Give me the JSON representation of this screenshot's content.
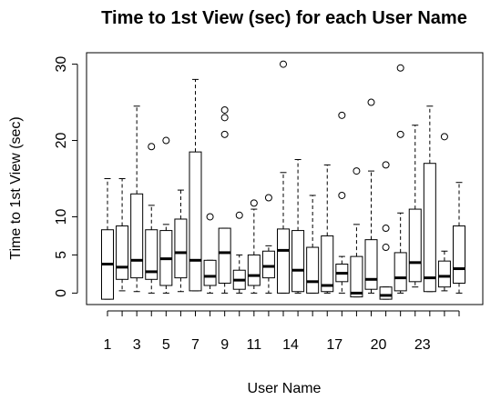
{
  "chart_data": {
    "type": "boxplot",
    "title": "Time to 1st View (sec) for each User Name",
    "xlabel": "User Name",
    "ylabel": "Time to 1st View (sec)",
    "ylim": [
      -1.5,
      31.5
    ],
    "y_ticks": [
      0,
      5,
      10,
      20,
      30
    ],
    "x_tick_labels": [
      "1",
      "3",
      "5",
      "7",
      "9",
      "11",
      "14",
      "17",
      "20",
      "23"
    ],
    "x_tick_positions": [
      1,
      3,
      5,
      7,
      9,
      11,
      13.5,
      16.5,
      19.5,
      22.5
    ],
    "n_groups": 25,
    "grid": false,
    "boxes": [
      {
        "group": 1,
        "whisker_low": -0.8,
        "q1": -0.8,
        "median": 3.8,
        "q3": 8.3,
        "whisker_high": 15.0,
        "outliers": []
      },
      {
        "group": 2,
        "whisker_low": 0.3,
        "q1": 1.8,
        "median": 3.4,
        "q3": 8.8,
        "whisker_high": 15.0,
        "outliers": []
      },
      {
        "group": 3,
        "whisker_low": 0.2,
        "q1": 2.0,
        "median": 4.3,
        "q3": 13.0,
        "whisker_high": 24.5,
        "outliers": []
      },
      {
        "group": 4,
        "whisker_low": 0.0,
        "q1": 1.8,
        "median": 2.8,
        "q3": 8.3,
        "whisker_high": 11.5,
        "outliers": [
          19.2
        ]
      },
      {
        "group": 5,
        "whisker_low": 0.0,
        "q1": 1.0,
        "median": 4.5,
        "q3": 8.2,
        "whisker_high": 9.0,
        "outliers": [
          20.0
        ]
      },
      {
        "group": 6,
        "whisker_low": 0.2,
        "q1": 2.0,
        "median": 5.3,
        "q3": 9.7,
        "whisker_high": 13.5,
        "outliers": []
      },
      {
        "group": 7,
        "whisker_low": 0.3,
        "q1": 0.3,
        "median": 4.3,
        "q3": 18.5,
        "whisker_high": 28.0,
        "outliers": []
      },
      {
        "group": 8,
        "whisker_low": 0.0,
        "q1": 1.0,
        "median": 2.2,
        "q3": 4.3,
        "whisker_high": 4.3,
        "outliers": [
          10.0
        ]
      },
      {
        "group": 9,
        "whisker_low": 0.0,
        "q1": 1.3,
        "median": 5.3,
        "q3": 8.5,
        "whisker_high": 8.5,
        "outliers": [
          20.8,
          23.0,
          24.0
        ]
      },
      {
        "group": 10,
        "whisker_low": 0.0,
        "q1": 0.5,
        "median": 1.7,
        "q3": 3.0,
        "whisker_high": 5.0,
        "outliers": [
          10.2
        ]
      },
      {
        "group": 11,
        "whisker_low": 0.0,
        "q1": 1.0,
        "median": 2.3,
        "q3": 5.0,
        "whisker_high": 11.0,
        "outliers": [
          11.8
        ]
      },
      {
        "group": 12,
        "whisker_low": 0.0,
        "q1": 2.0,
        "median": 3.5,
        "q3": 5.5,
        "whisker_high": 6.2,
        "outliers": [
          12.5
        ]
      },
      {
        "group": 13,
        "whisker_low": 0.0,
        "q1": 0.0,
        "median": 5.6,
        "q3": 8.4,
        "whisker_high": 15.8,
        "outliers": [
          30.0
        ]
      },
      {
        "group": 14,
        "whisker_low": 0.0,
        "q1": 0.2,
        "median": 3.0,
        "q3": 8.2,
        "whisker_high": 17.5,
        "outliers": []
      },
      {
        "group": 15,
        "whisker_low": 0.0,
        "q1": 0.0,
        "median": 1.5,
        "q3": 6.0,
        "whisker_high": 12.8,
        "outliers": []
      },
      {
        "group": 16,
        "whisker_low": 0.0,
        "q1": 0.2,
        "median": 1.0,
        "q3": 7.5,
        "whisker_high": 16.8,
        "outliers": []
      },
      {
        "group": 17,
        "whisker_low": 0.0,
        "q1": 1.5,
        "median": 2.6,
        "q3": 3.8,
        "whisker_high": 4.8,
        "outliers": [
          12.8,
          23.3
        ]
      },
      {
        "group": 18,
        "whisker_low": -0.5,
        "q1": -0.5,
        "median": 0.0,
        "q3": 4.8,
        "whisker_high": 9.0,
        "outliers": [
          16.0
        ]
      },
      {
        "group": 19,
        "whisker_low": 0.0,
        "q1": 0.5,
        "median": 1.8,
        "q3": 7.0,
        "whisker_high": 16.0,
        "outliers": [
          25.0
        ]
      },
      {
        "group": 20,
        "whisker_low": -0.8,
        "q1": -0.8,
        "median": -0.3,
        "q3": 0.8,
        "whisker_high": 0.8,
        "outliers": [
          6.0,
          8.5,
          16.8
        ]
      },
      {
        "group": 21,
        "whisker_low": 0.0,
        "q1": 0.3,
        "median": 2.0,
        "q3": 5.3,
        "whisker_high": 10.5,
        "outliers": [
          20.8,
          29.5
        ]
      },
      {
        "group": 22,
        "whisker_low": 0.8,
        "q1": 1.5,
        "median": 4.0,
        "q3": 11.0,
        "whisker_high": 22.0,
        "outliers": []
      },
      {
        "group": 23,
        "whisker_low": 0.2,
        "q1": 0.2,
        "median": 2.0,
        "q3": 17.0,
        "whisker_high": 24.5,
        "outliers": []
      },
      {
        "group": 24,
        "whisker_low": 0.3,
        "q1": 0.8,
        "median": 2.2,
        "q3": 4.2,
        "whisker_high": 5.5,
        "outliers": [
          20.5
        ]
      },
      {
        "group": 25,
        "whisker_low": 0.0,
        "q1": 1.3,
        "median": 3.2,
        "q3": 8.8,
        "whisker_high": 14.5,
        "outliers": []
      }
    ]
  }
}
